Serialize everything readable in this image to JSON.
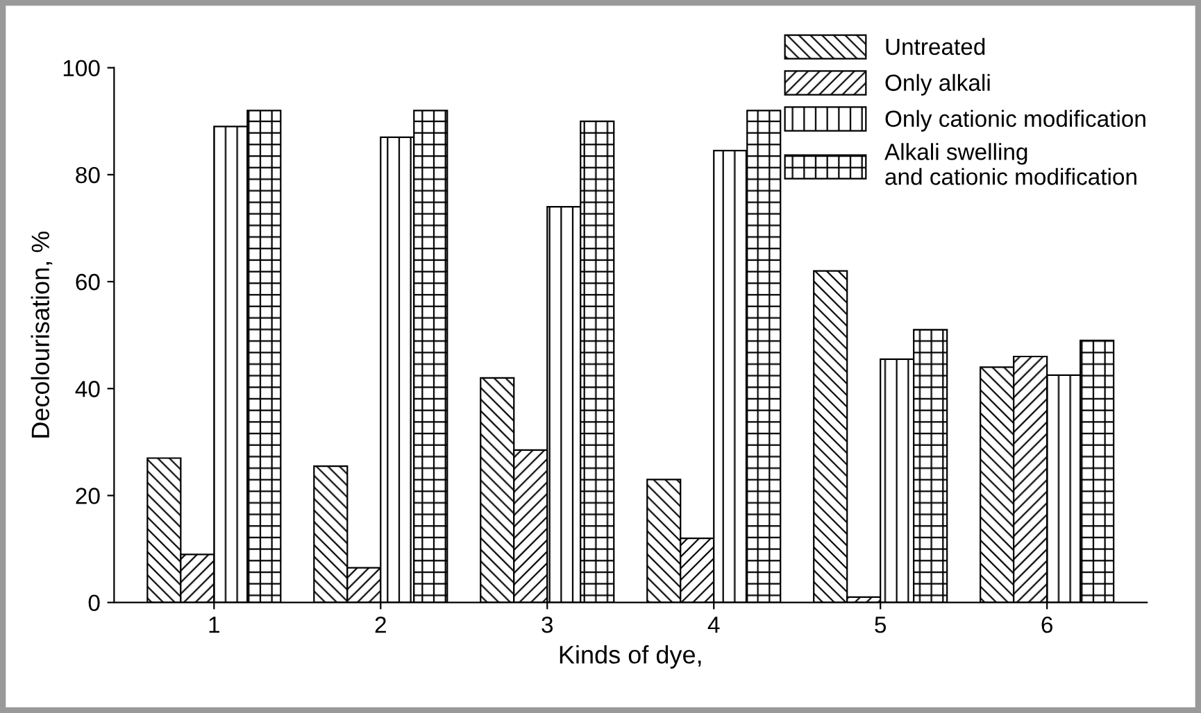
{
  "chart_data": {
    "type": "bar",
    "xlabel": "Kinds of dye,",
    "ylabel": "Decolourisation, %",
    "categories": [
      "1",
      "2",
      "3",
      "4",
      "5",
      "6"
    ],
    "series": [
      {
        "name": "Untreated",
        "color": "#000000",
        "values": [
          27,
          25.5,
          42,
          23,
          62,
          44
        ]
      },
      {
        "name": "Only alkali",
        "color": "#000000",
        "values": [
          9,
          6.5,
          28.5,
          12,
          1,
          46
        ]
      },
      {
        "name": "Only cationic modification",
        "color": "#000000",
        "values": [
          89,
          87,
          74,
          84.5,
          45.5,
          42.5
        ]
      },
      {
        "name": "Alkali swelling\nand cationic modification",
        "color": "#000000",
        "values": [
          92,
          92,
          90,
          92,
          51,
          49
        ]
      }
    ],
    "ylim": [
      0,
      100
    ],
    "yticks": [
      0,
      20,
      40,
      60,
      80,
      100
    ],
    "grid": false,
    "legend": "top right"
  }
}
